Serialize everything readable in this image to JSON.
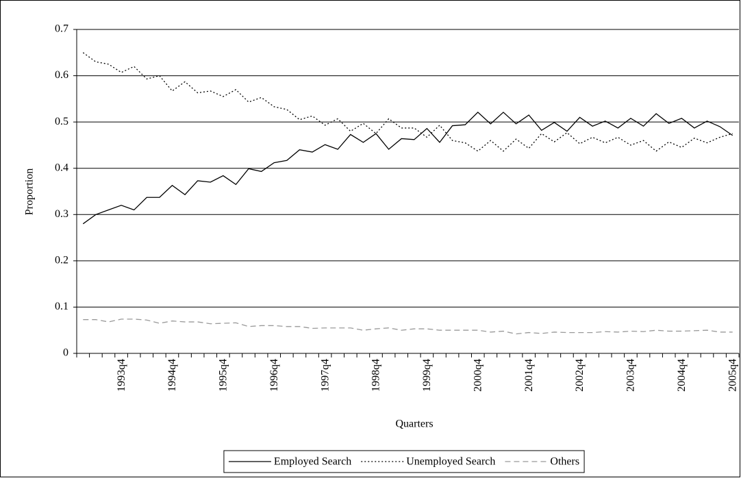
{
  "chart_data": {
    "type": "line",
    "x_label": "Quarters",
    "y_label": "Proportion",
    "categories": [
      null,
      null,
      null,
      "1993q4",
      null,
      null,
      null,
      "1994q4",
      null,
      null,
      null,
      "1995q4",
      null,
      null,
      null,
      "1996q4",
      null,
      null,
      null,
      "1997q4",
      null,
      null,
      null,
      "1998q4",
      null,
      null,
      null,
      "1999q4",
      null,
      null,
      null,
      "2000q4",
      null,
      null,
      null,
      "2001q4",
      null,
      null,
      null,
      "2002q4",
      null,
      null,
      null,
      "2003q4",
      null,
      null,
      null,
      "2004q4",
      null,
      null,
      null,
      "2005q4"
    ],
    "series": [
      {
        "name": "Employed Search",
        "color": "#000000",
        "line_style": "solid",
        "values": [
          0.28,
          0.3,
          0.31,
          0.32,
          0.31,
          0.337,
          0.337,
          0.363,
          0.343,
          0.373,
          0.37,
          0.384,
          0.365,
          0.399,
          0.393,
          0.412,
          0.417,
          0.44,
          0.435,
          0.451,
          0.441,
          0.473,
          0.456,
          0.475,
          0.441,
          0.464,
          0.462,
          0.486,
          0.456,
          0.492,
          0.494,
          0.521,
          0.496,
          0.521,
          0.496,
          0.515,
          0.482,
          0.499,
          0.48,
          0.51,
          0.491,
          0.502,
          0.487,
          0.508,
          0.491,
          0.518,
          0.497,
          0.508,
          0.487,
          0.502,
          0.49,
          0.471
        ]
      },
      {
        "name": "Unemployed Search",
        "color": "#000000",
        "line_style": "dotted",
        "values": [
          0.65,
          0.63,
          0.625,
          0.607,
          0.62,
          0.593,
          0.6,
          0.567,
          0.587,
          0.563,
          0.567,
          0.555,
          0.57,
          0.543,
          0.553,
          0.533,
          0.527,
          0.505,
          0.513,
          0.493,
          0.507,
          0.48,
          0.497,
          0.475,
          0.507,
          0.487,
          0.487,
          0.467,
          0.493,
          0.46,
          0.455,
          0.437,
          0.46,
          0.437,
          0.463,
          0.443,
          0.475,
          0.457,
          0.477,
          0.453,
          0.467,
          0.455,
          0.467,
          0.45,
          0.46,
          0.437,
          0.457,
          0.445,
          0.465,
          0.455,
          0.467,
          0.475
        ]
      },
      {
        "name": "Others",
        "color": "#999999",
        "line_style": "dashed",
        "values": [
          0.073,
          0.073,
          0.068,
          0.074,
          0.074,
          0.072,
          0.065,
          0.07,
          0.068,
          0.068,
          0.064,
          0.065,
          0.066,
          0.058,
          0.06,
          0.06,
          0.058,
          0.058,
          0.054,
          0.055,
          0.055,
          0.055,
          0.05,
          0.053,
          0.055,
          0.05,
          0.053,
          0.053,
          0.05,
          0.05,
          0.05,
          0.05,
          0.046,
          0.048,
          0.042,
          0.045,
          0.043,
          0.046,
          0.045,
          0.045,
          0.045,
          0.047,
          0.046,
          0.048,
          0.047,
          0.05,
          0.048,
          0.048,
          0.049,
          0.05,
          0.046,
          0.046
        ]
      }
    ],
    "ylim": [
      0,
      0.7
    ],
    "yticks": [
      0,
      0.1,
      0.2,
      0.3,
      0.4,
      0.5,
      0.6,
      0.7
    ],
    "grid": true,
    "legend": "bottom"
  }
}
